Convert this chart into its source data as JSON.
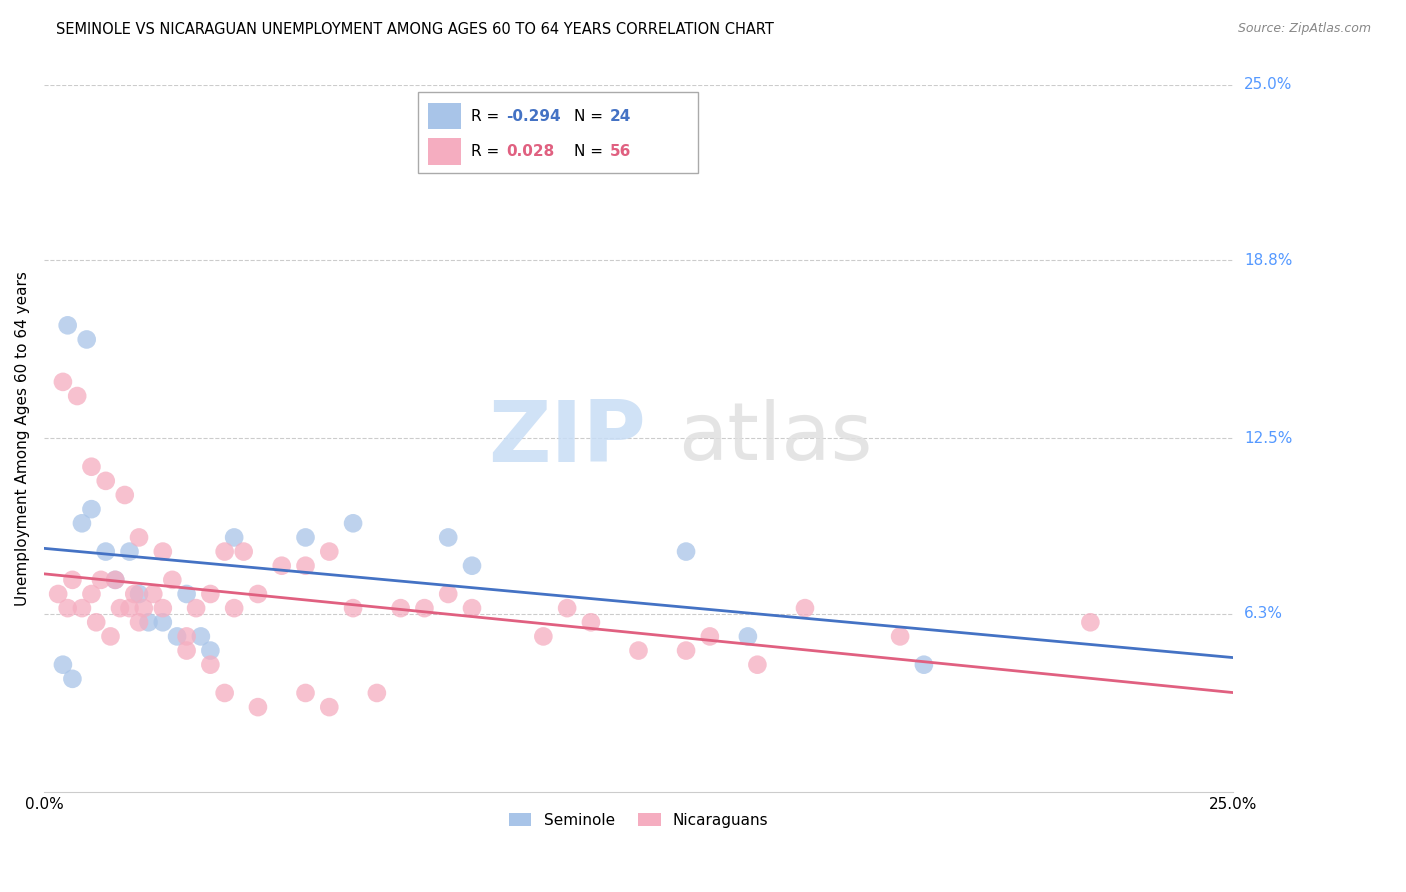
{
  "title": "SEMINOLE VS NICARAGUAN UNEMPLOYMENT AMONG AGES 60 TO 64 YEARS CORRELATION CHART",
  "source": "Source: ZipAtlas.com",
  "ylabel": "Unemployment Among Ages 60 to 64 years",
  "xlim": [
    0.0,
    25.0
  ],
  "ylim": [
    0.0,
    25.0
  ],
  "ytick_labels": [
    "25.0%",
    "18.8%",
    "12.5%",
    "6.3%"
  ],
  "ytick_values": [
    25.0,
    18.8,
    12.5,
    6.3
  ],
  "legend_blue_r": "-0.294",
  "legend_blue_n": "24",
  "legend_pink_r": "0.028",
  "legend_pink_n": "56",
  "legend_blue_label": "Seminole",
  "legend_pink_label": "Nicaraguans",
  "blue_color": "#a8c4e8",
  "pink_color": "#f5adc0",
  "trend_blue_color": "#4472c4",
  "trend_pink_color": "#e06080",
  "seminole_x": [
    0.4,
    0.6,
    0.8,
    1.0,
    1.3,
    1.5,
    1.8,
    2.0,
    2.2,
    2.5,
    2.8,
    3.0,
    3.3,
    3.5,
    4.0,
    5.5,
    6.5,
    8.5,
    9.0,
    13.5,
    14.8,
    18.5,
    0.5,
    0.9
  ],
  "seminole_y": [
    4.5,
    4.0,
    9.5,
    10.0,
    8.5,
    7.5,
    8.5,
    7.0,
    6.0,
    6.0,
    5.5,
    7.0,
    5.5,
    5.0,
    9.0,
    9.0,
    9.5,
    9.0,
    8.0,
    8.5,
    5.5,
    4.5,
    16.5,
    16.0
  ],
  "nicaraguan_x": [
    0.3,
    0.5,
    0.6,
    0.8,
    1.0,
    1.1,
    1.2,
    1.4,
    1.5,
    1.6,
    1.8,
    1.9,
    2.0,
    2.1,
    2.3,
    2.5,
    2.7,
    3.0,
    3.2,
    3.5,
    3.8,
    4.0,
    4.2,
    4.5,
    5.0,
    5.5,
    6.0,
    6.5,
    7.5,
    8.0,
    8.5,
    9.0,
    10.5,
    11.0,
    11.5,
    12.5,
    13.5,
    14.0,
    15.0,
    16.0,
    18.0,
    22.0,
    0.4,
    0.7,
    1.0,
    1.3,
    1.7,
    2.0,
    2.5,
    3.0,
    3.5,
    3.8,
    4.5,
    5.5,
    6.0,
    7.0
  ],
  "nicaraguan_y": [
    7.0,
    6.5,
    7.5,
    6.5,
    7.0,
    6.0,
    7.5,
    5.5,
    7.5,
    6.5,
    6.5,
    7.0,
    6.0,
    6.5,
    7.0,
    6.5,
    7.5,
    5.5,
    6.5,
    7.0,
    8.5,
    6.5,
    8.5,
    7.0,
    8.0,
    8.0,
    8.5,
    6.5,
    6.5,
    6.5,
    7.0,
    6.5,
    5.5,
    6.5,
    6.0,
    5.0,
    5.0,
    5.5,
    4.5,
    6.5,
    5.5,
    6.0,
    14.5,
    14.0,
    11.5,
    11.0,
    10.5,
    9.0,
    8.5,
    5.0,
    4.5,
    3.5,
    3.0,
    3.5,
    3.0,
    3.5
  ],
  "grid_color": "#cccccc",
  "label_right_color": "#5599ff"
}
